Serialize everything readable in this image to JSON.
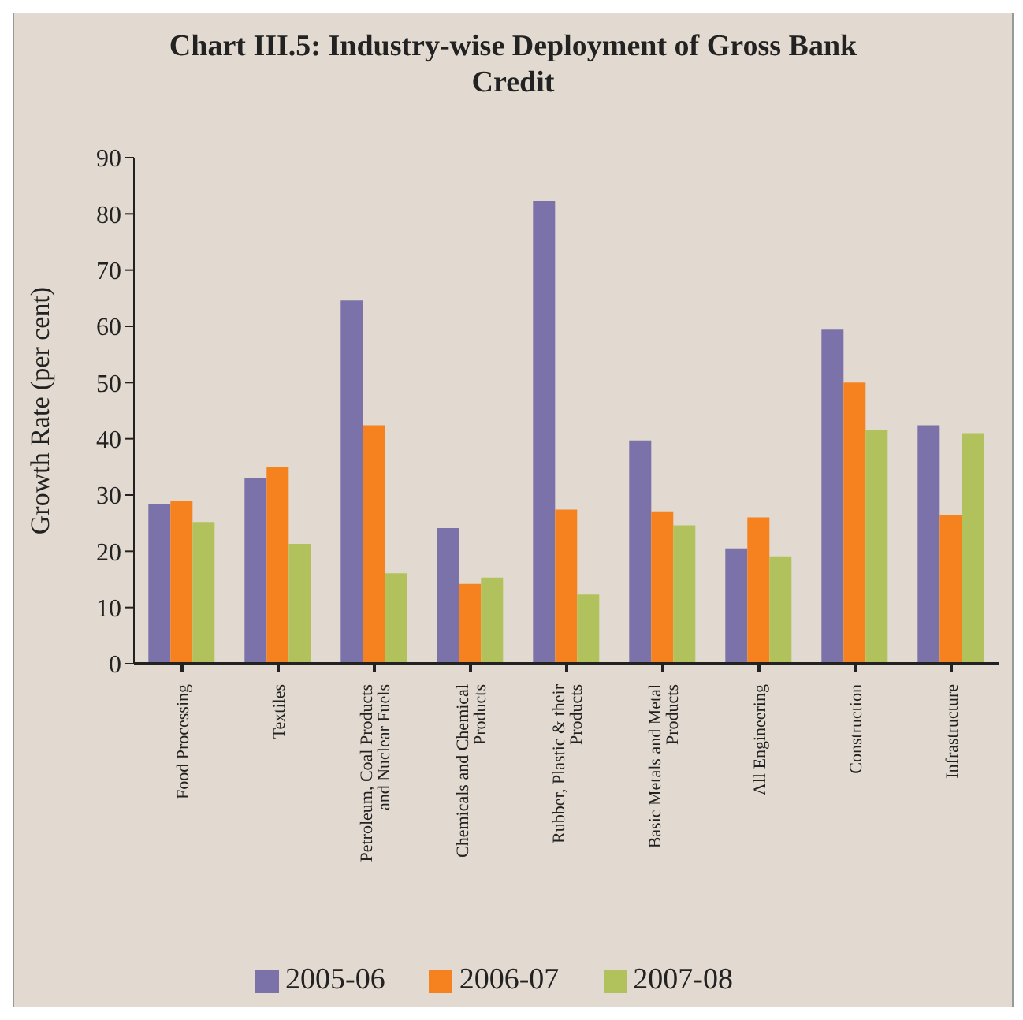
{
  "chart_data": {
    "type": "bar",
    "title": "Chart III.5: Industry-wise Deployment of Gross Bank Credit",
    "ylabel": "Growth Rate (per cent)",
    "categories": [
      "Food Processing",
      "Textiles",
      "Petroleum, Coal Products and Nuclear Fuels",
      "Chemicals and Chemical Products",
      "Rubber, Plastic & their Products",
      "Basic Metals and Metal Products",
      "All Engineering",
      "Construction",
      "Infrastructure"
    ],
    "series": [
      {
        "name": "2005-06",
        "color": "#7a72a8",
        "values": [
          28.4,
          33.1,
          64.6,
          24.1,
          82.3,
          39.7,
          20.5,
          59.4,
          42.4
        ]
      },
      {
        "name": "2006-07",
        "color": "#f5821f",
        "values": [
          29,
          35,
          42.4,
          14.2,
          27.4,
          27.1,
          26,
          50,
          26.5
        ]
      },
      {
        "name": "2007-08",
        "color": "#b1c25c",
        "values": [
          25.2,
          21.3,
          16.1,
          15.3,
          12.3,
          24.6,
          19.1,
          41.6,
          41
        ]
      }
    ],
    "ylim": [
      0,
      90
    ],
    "yticks": [
      0,
      10,
      20,
      30,
      40,
      50,
      60,
      70,
      80,
      90
    ],
    "grid": false,
    "legend": "bottom"
  }
}
